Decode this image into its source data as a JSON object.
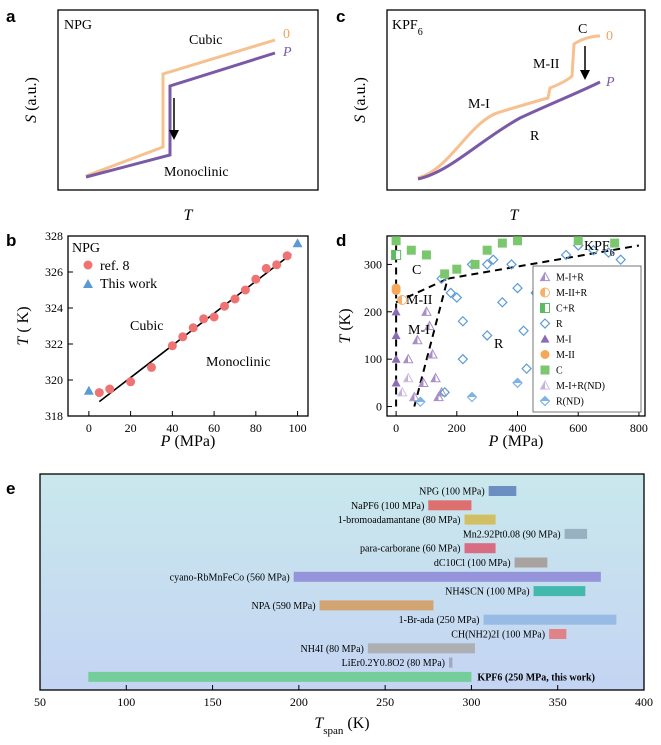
{
  "panels": {
    "a": {
      "letter": "a",
      "title": "NPG",
      "ylabel": "S (a.u.)",
      "xlabel": "T",
      "label_zero": "0",
      "label_p": "P",
      "label_cubic": "Cubic",
      "label_mono": "Monoclinic"
    },
    "c": {
      "letter": "c",
      "title": "KPF6",
      "ylabel": "S (a.u.)",
      "xlabel": "T",
      "label_zero": "0",
      "label_p": "P",
      "label_c": "C",
      "label_m2": "M-II",
      "label_m1": "M-I",
      "label_r": "R"
    },
    "b": {
      "letter": "b",
      "title": "NPG",
      "label_cubic": "Cubic",
      "label_mono": "Monoclinic"
    },
    "d": {
      "letter": "d",
      "title": "KPF6",
      "label_c": "C",
      "label_m2": "M-II",
      "label_m1": "M-I",
      "label_r": "R"
    },
    "e": {
      "letter": "e"
    }
  },
  "chart_data": [
    {
      "id": "b",
      "type": "scatter",
      "xlabel": "P (MPa)",
      "ylabel": "T ( K)",
      "xlim": [
        -10,
        105
      ],
      "ylim": [
        318,
        328
      ],
      "xticks": [
        0,
        20,
        40,
        60,
        80,
        100
      ],
      "yticks": [
        318,
        320,
        322,
        324,
        326,
        328
      ],
      "series": [
        {
          "name": "ref. 8",
          "color": "#f07373",
          "x": [
            5,
            10,
            20,
            30,
            40,
            45,
            50,
            55,
            60,
            65,
            70,
            75,
            80,
            85,
            90,
            95
          ],
          "y": [
            319.3,
            319.5,
            319.9,
            320.7,
            321.9,
            322.4,
            322.9,
            323.4,
            323.5,
            324.1,
            324.5,
            325.0,
            325.6,
            326.2,
            326.4,
            326.9
          ]
        },
        {
          "name": "This work",
          "color": "#5b9bd5",
          "x": [
            0,
            100
          ],
          "y": [
            319.4,
            327.6
          ]
        }
      ],
      "fit_line": {
        "x": [
          5,
          97
        ],
        "y": [
          318.8,
          327.0
        ]
      }
    },
    {
      "id": "d",
      "type": "scatter",
      "xlabel": "P (MPa)",
      "ylabel": "T (K)",
      "xlim": [
        -30,
        820
      ],
      "ylim": [
        -20,
        360
      ],
      "xticks": [
        0,
        200,
        400,
        600,
        800
      ],
      "yticks": [
        0,
        100,
        200,
        300
      ],
      "series": [
        {
          "name": "M-I+R",
          "marker": "tri-half",
          "color": "#a98fc7",
          "x": [
            40,
            70,
            100,
            110,
            120,
            130,
            140,
            150,
            90,
            60
          ],
          "y": [
            100,
            140,
            200,
            170,
            110,
            60,
            20,
            30,
            50,
            20
          ]
        },
        {
          "name": "M-II+R",
          "marker": "circle-half",
          "color": "#f5b06b",
          "x": [
            20
          ],
          "y": [
            225
          ]
        },
        {
          "name": "C+R",
          "marker": "square-half",
          "color": "#5dbb63",
          "x": [
            0
          ],
          "y": [
            320
          ]
        },
        {
          "name": "R",
          "marker": "diamond",
          "color": "#5b9bd5",
          "x": [
            150,
            180,
            200,
            220,
            250,
            300,
            320,
            350,
            380,
            400,
            420,
            430,
            460,
            560,
            600,
            650,
            700,
            740,
            220,
            160,
            300
          ],
          "y": [
            270,
            240,
            230,
            100,
            300,
            300,
            310,
            220,
            300,
            250,
            160,
            80,
            240,
            320,
            340,
            330,
            325,
            310,
            180,
            30,
            150
          ]
        },
        {
          "name": "M-I",
          "marker": "triangle",
          "color": "#8a6cb5",
          "x": [
            0,
            0,
            0,
            0
          ],
          "y": [
            50,
            100,
            150,
            200
          ]
        },
        {
          "name": "M-II",
          "marker": "circle",
          "color": "#f5a958",
          "x": [
            0,
            0
          ],
          "y": [
            245,
            250
          ]
        },
        {
          "name": "C",
          "marker": "square",
          "color": "#7bc76e",
          "x": [
            0,
            50,
            100,
            160,
            200,
            260,
            300,
            350,
            400,
            600,
            720
          ],
          "y": [
            350,
            330,
            320,
            280,
            290,
            300,
            330,
            345,
            350,
            350,
            345
          ]
        },
        {
          "name": "M-I+R(ND)",
          "marker": "tri-half-nd",
          "color": "#b8a4d6",
          "x": [
            20,
            40,
            60
          ],
          "y": [
            30,
            60,
            20
          ]
        },
        {
          "name": "R(ND)",
          "marker": "diamond-half",
          "color": "#7fb3e6",
          "x": [
            80,
            250,
            400
          ],
          "y": [
            10,
            20,
            50
          ]
        }
      ],
      "boundaries": [
        {
          "x": [
            0,
            0
          ],
          "y": [
            0,
            340
          ]
        },
        {
          "x": [
            0,
            170
          ],
          "y": [
            220,
            270
          ]
        },
        {
          "x": [
            60,
            170
          ],
          "y": [
            0,
            270
          ]
        },
        {
          "x": [
            170,
            800
          ],
          "y": [
            270,
            340
          ]
        }
      ]
    },
    {
      "id": "e",
      "type": "bar",
      "orientation": "horizontal-range",
      "xlabel": "T_span (K)",
      "xlim": [
        50,
        400
      ],
      "xticks": [
        50,
        100,
        150,
        200,
        250,
        300,
        350,
        400
      ],
      "bars": [
        {
          "label": "NPG (100 MPa)",
          "start": 310,
          "end": 326,
          "color": "#5b7fb8"
        },
        {
          "label": "NaPF6 (100 MPa)",
          "start": 275,
          "end": 300,
          "color": "#e05a5a"
        },
        {
          "label": "1-bromoadamantane (80 MPa)",
          "start": 296,
          "end": 314,
          "color": "#d4b84a"
        },
        {
          "label": "Mn2.92Pt0.08 (90 MPa)",
          "start": 354,
          "end": 367,
          "color": "#8ea8b8"
        },
        {
          "label": "para-carborane (60 MPa)",
          "start": 296,
          "end": 314,
          "color": "#d9576e"
        },
        {
          "label": "dC10Cl (100 MPa)",
          "start": 325,
          "end": 344,
          "color": "#a39892"
        },
        {
          "label": "cyano-RbMnFeCo (560 MPa)",
          "start": 197,
          "end": 375,
          "color": "#8c87d6"
        },
        {
          "label": "NH4SCN (100 MPa)",
          "start": 336,
          "end": 366,
          "color": "#2bb3a1"
        },
        {
          "label": "NPA (590 MPa)",
          "start": 212,
          "end": 278,
          "color": "#d49a5c"
        },
        {
          "label": "1-Br-ada (250 MPa)",
          "start": 307,
          "end": 384,
          "color": "#8fb5e3"
        },
        {
          "label": "CH(NH2)2I (100 MPa)",
          "start": 345,
          "end": 355,
          "color": "#e57373"
        },
        {
          "label": "NH4I (80 MPa)",
          "start": 240,
          "end": 302,
          "color": "#a8a8a8"
        },
        {
          "label": "LiEr0.2Y0.8O2 (80 MPa)",
          "start": 287,
          "end": 289,
          "color": "#9aa0b5"
        },
        {
          "label": "KPF6 (250 MPa, this work)",
          "start": 78,
          "end": 300,
          "color": "#66cc8a"
        }
      ]
    }
  ]
}
